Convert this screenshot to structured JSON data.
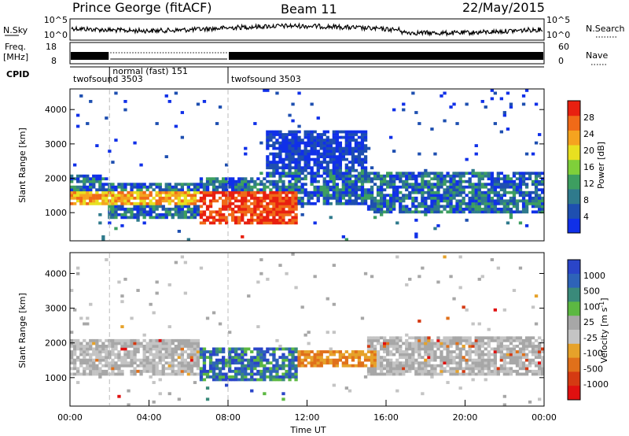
{
  "header": {
    "station": "Prince George (fitACF)",
    "beam": "Beam 11",
    "date": "22/May/2015"
  },
  "panels": {
    "nsky": {
      "left_label": "N.Sky",
      "left_ticks": [
        "10^5",
        "10^0"
      ],
      "right_ticks": [
        "10^5",
        "10^0"
      ],
      "right_label": "N.Search",
      "right_legend_line": "dotted"
    },
    "freq": {
      "left_label_1": "Freq.",
      "left_label_2": "[MHz]",
      "left_ticks": [
        "18",
        "8"
      ],
      "right_ticks": [
        "60",
        "0"
      ],
      "right_label": "Nave",
      "right_legend_line": "dotted"
    },
    "cpid": {
      "label": "CPID",
      "segments": [
        {
          "name": "twofsound",
          "id": "3503",
          "start_hour": 0,
          "end_hour": 2
        },
        {
          "name": "normal (fast)",
          "id": "151",
          "start_hour": 2,
          "end_hour": 8
        },
        {
          "name": "twofsound",
          "id": "3503",
          "start_hour": 8,
          "end_hour": 24
        }
      ]
    }
  },
  "colors": {
    "power_scale": [
      "#1030e8",
      "#1e4fb0",
      "#2f7a8c",
      "#3d9e60",
      "#7fcf3a",
      "#e8e020",
      "#f5a31f",
      "#f06a18",
      "#e82010"
    ],
    "velocity_scale": [
      "#2a45c8",
      "#2e63b8",
      "#3a8a7a",
      "#5cb842",
      "#a7a7a7",
      "#c4c4c4",
      "#e6a22a",
      "#e0701a",
      "#d53a12",
      "#e01010"
    ]
  },
  "chart_data": [
    {
      "type": "heatmap",
      "title": "",
      "parameter": "Power",
      "xlabel": "",
      "ylabel": "Slant Range [km]",
      "xlim": [
        0,
        24
      ],
      "ylim": [
        180,
        4600
      ],
      "yticks": [
        1000,
        2000,
        3000,
        4000
      ],
      "colorbar": {
        "label": "Power [dB]",
        "ticks": [
          "4",
          "8",
          "12",
          "16",
          "20",
          "24",
          "28"
        ],
        "range": [
          0,
          30
        ]
      },
      "regions": [
        {
          "t_start": 0,
          "t_end": 2,
          "range_min": 1200,
          "range_max": 2100,
          "level": "moderate-strong"
        },
        {
          "t_start": 2,
          "t_end": 6.5,
          "range_min": 800,
          "range_max": 1900,
          "level": "mixed"
        },
        {
          "t_start": 6.5,
          "t_end": 11.5,
          "range_min": 700,
          "range_max": 2000,
          "level": "strong"
        },
        {
          "t_start": 10,
          "t_end": 15,
          "range_min": 1200,
          "range_max": 3400,
          "level": "weak-moderate"
        },
        {
          "t_start": 15,
          "t_end": 24,
          "range_min": 1000,
          "range_max": 2200,
          "level": "weak-moderate"
        }
      ]
    },
    {
      "type": "heatmap",
      "title": "",
      "parameter": "Velocity",
      "xlabel": "Time UT",
      "ylabel": "Slant Range [km]",
      "xlim": [
        0,
        24
      ],
      "ylim": [
        180,
        4600
      ],
      "xticks": [
        "00:00",
        "04:00",
        "08:00",
        "12:00",
        "16:00",
        "20:00",
        "00:00"
      ],
      "yticks": [
        1000,
        2000,
        3000,
        4000
      ],
      "colorbar": {
        "label": "Velocity [m s^-1]",
        "ticks": [
          "1000",
          "500",
          "100",
          "25",
          "-25",
          "-100",
          "-500",
          "-1000"
        ]
      },
      "regions": [
        {
          "t_start": 0,
          "t_end": 6.5,
          "range_min": 1100,
          "range_max": 2100,
          "level": "ground-scatter"
        },
        {
          "t_start": 6.5,
          "t_end": 11.5,
          "range_min": 900,
          "range_max": 1900,
          "level": "positive-green-blue"
        },
        {
          "t_start": 11.5,
          "t_end": 15.5,
          "range_min": 1300,
          "range_max": 1800,
          "level": "negative-orange"
        },
        {
          "t_start": 15,
          "t_end": 24,
          "range_min": 1100,
          "range_max": 2200,
          "level": "ground-scatter"
        }
      ]
    }
  ]
}
